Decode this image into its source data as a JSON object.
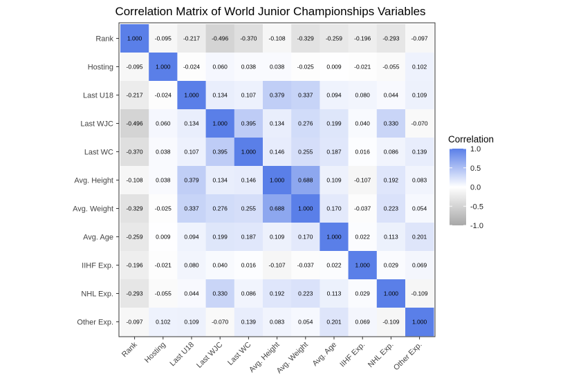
{
  "chart_data": {
    "type": "heatmap",
    "title": "Correlation Matrix of World Junior Championships Variables",
    "xlabel": "",
    "ylabel": "",
    "variables": [
      "Rank",
      "Hosting",
      "Last U18",
      "Last WJC",
      "Last WC",
      "Avg. Height",
      "Avg. Weight",
      "Avg. Age",
      "IIHF Exp.",
      "NHL Exp.",
      "Other Exp."
    ],
    "matrix": [
      [
        1.0,
        -0.095,
        -0.217,
        -0.496,
        -0.37,
        -0.108,
        -0.329,
        -0.259,
        -0.196,
        -0.293,
        -0.097
      ],
      [
        -0.095,
        1.0,
        -0.024,
        0.06,
        0.038,
        0.038,
        -0.025,
        0.009,
        -0.021,
        -0.055,
        0.102
      ],
      [
        -0.217,
        -0.024,
        1.0,
        0.134,
        0.107,
        0.379,
        0.337,
        0.094,
        0.08,
        0.044,
        0.109
      ],
      [
        -0.496,
        0.06,
        0.134,
        1.0,
        0.395,
        0.134,
        0.276,
        0.199,
        0.04,
        0.33,
        -0.07
      ],
      [
        -0.37,
        0.038,
        0.107,
        0.395,
        1.0,
        0.146,
        0.255,
        0.187,
        0.016,
        0.086,
        0.139
      ],
      [
        -0.108,
        0.038,
        0.379,
        0.134,
        0.146,
        1.0,
        0.688,
        0.109,
        -0.107,
        0.192,
        0.083
      ],
      [
        -0.329,
        -0.025,
        0.337,
        0.276,
        0.255,
        0.688,
        1.0,
        0.17,
        -0.037,
        0.223,
        0.054
      ],
      [
        -0.259,
        0.009,
        0.094,
        0.199,
        0.187,
        0.109,
        0.17,
        1.0,
        0.022,
        0.113,
        0.201
      ],
      [
        -0.196,
        -0.021,
        0.08,
        0.04,
        0.016,
        -0.107,
        -0.037,
        0.022,
        1.0,
        0.029,
        0.069
      ],
      [
        -0.293,
        -0.055,
        0.044,
        0.33,
        0.086,
        0.192,
        0.223,
        0.113,
        0.029,
        1.0,
        -0.109
      ],
      [
        -0.097,
        0.102,
        0.109,
        -0.07,
        0.139,
        0.083,
        0.054,
        0.201,
        0.069,
        -0.109,
        1.0
      ]
    ],
    "value_range": [
      -1.0,
      1.0
    ],
    "legend": {
      "title": "Correlation",
      "ticks": [
        1.0,
        0.5,
        0.0,
        -0.5,
        -1.0
      ],
      "tick_labels": [
        "1.0",
        "0.5",
        "0.0",
        "-0.5",
        "-1.0"
      ],
      "placement": "right"
    },
    "colors": {
      "high": "#5a7fe8",
      "mid": "#ffffff",
      "low": "#a8a8a8"
    }
  }
}
